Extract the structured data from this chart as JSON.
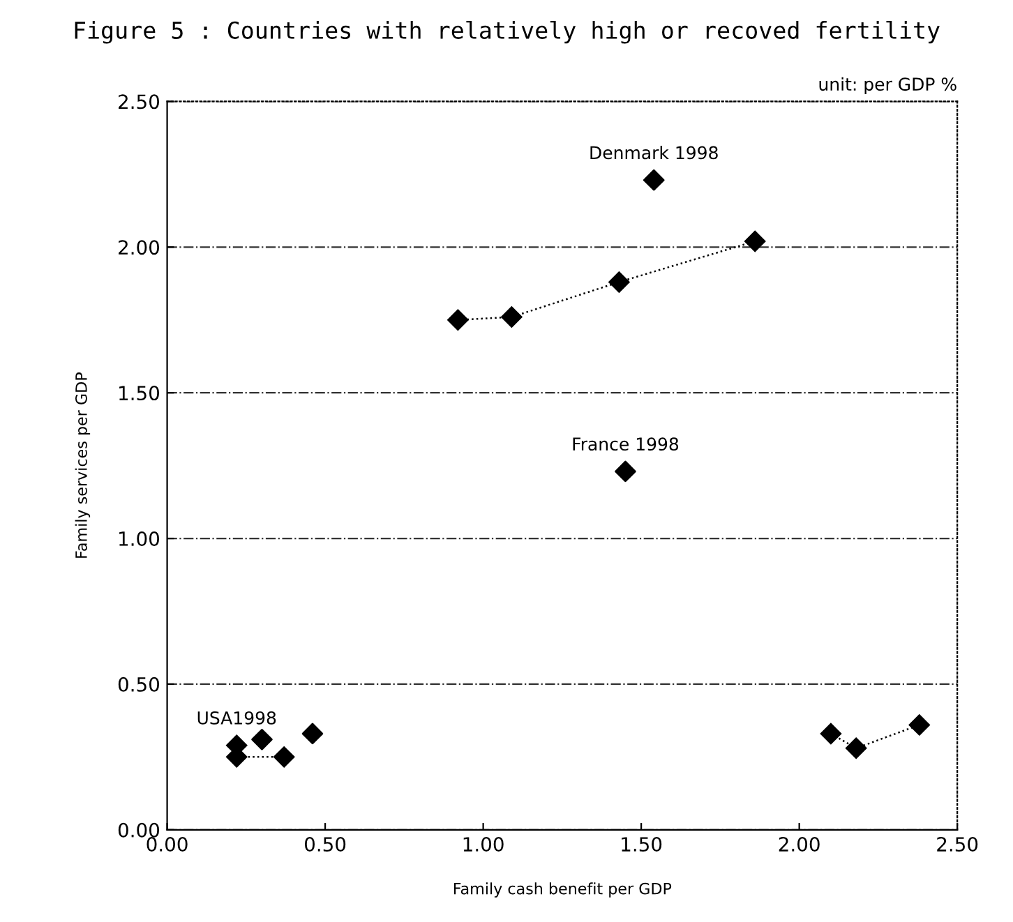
{
  "chart_data": {
    "type": "scatter",
    "title": "Figure 5 : Countries with relatively high or recoved fertility",
    "xlabel": "Family cash benefit per GDP",
    "ylabel": "Family services per GDP",
    "annotations": [
      "unit: per GDP %",
      {
        "text": "Denmark 1998",
        "x": 1.54,
        "y": 2.23
      },
      {
        "text": "France 1998",
        "x": 1.45,
        "y": 1.23
      },
      {
        "text": "USA1998",
        "x": 0.22,
        "y": 0.29
      }
    ],
    "series": [
      {
        "type": "line",
        "color": "#000000",
        "x": [
          0.92,
          1.09,
          1.43,
          1.86
        ],
        "values": [
          1.75,
          1.76,
          1.88,
          2.02
        ]
      },
      {
        "color": "#000000",
        "x": [
          1.54
        ],
        "values": [
          2.23
        ]
      },
      {
        "color": "#000000",
        "x": [
          1.45
        ],
        "values": [
          1.23
        ]
      },
      {
        "type": "line",
        "color": "#000000",
        "x": [
          0.22,
          0.22,
          0.37
        ],
        "values": [
          0.29,
          0.25,
          0.25
        ]
      },
      {
        "color": "#000000",
        "x": [
          0.3,
          0.46
        ],
        "values": [
          0.31,
          0.33
        ]
      },
      {
        "type": "line",
        "color": "#000000",
        "x": [
          2.1,
          2.18,
          2.38
        ],
        "values": [
          0.33,
          0.28,
          0.36
        ]
      }
    ],
    "xlim": [
      0,
      2.5
    ],
    "ylim": [
      0,
      2.5
    ],
    "xticks": [
      {
        "value": 0,
        "label": "0.00"
      },
      {
        "value": 0.5,
        "label": "0.50"
      },
      {
        "value": 1,
        "label": "1.00"
      },
      {
        "value": 1.5,
        "label": "1.50"
      },
      {
        "value": 2,
        "label": "2.00"
      },
      {
        "value": 2.5,
        "label": "2.50"
      }
    ],
    "yticks": [
      {
        "value": 0,
        "label": "0.00"
      },
      {
        "value": 0.5,
        "label": "0.50"
      },
      {
        "value": 1,
        "label": "1.00"
      },
      {
        "value": 1.5,
        "label": "1.50"
      },
      {
        "value": 2,
        "label": "2.00"
      },
      {
        "value": 2.5,
        "label": "2.50"
      }
    ],
    "grid": "y",
    "marker": "diamond",
    "line_style": "dotted",
    "legend": false
  }
}
